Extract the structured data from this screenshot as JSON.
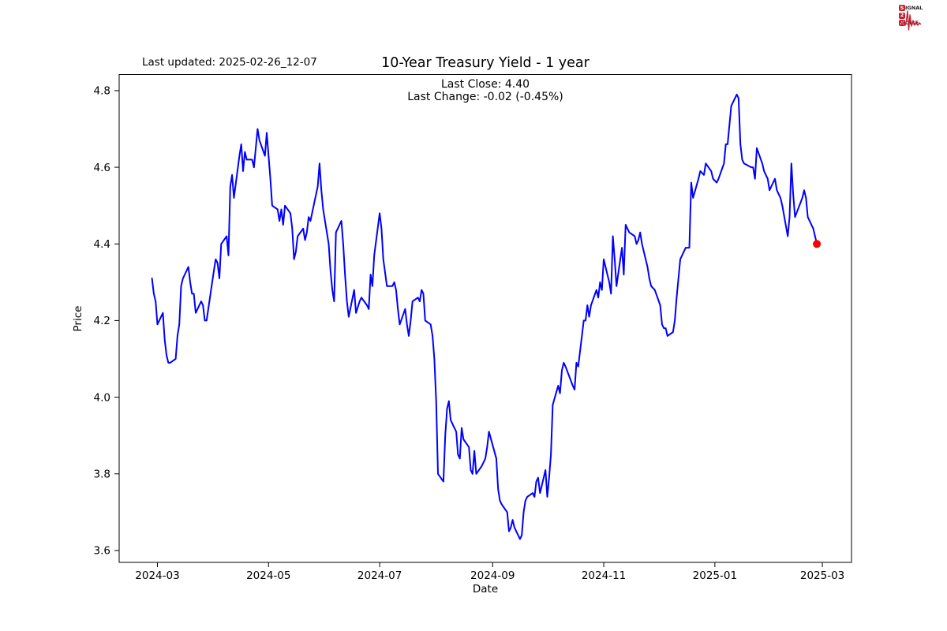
{
  "header": {
    "last_updated": "Last updated: 2025-02-26_12-07",
    "title": "10-Year Treasury Yield - 1 year",
    "subtitle_line1": "Last Close: 4.40",
    "subtitle_line2": "Last Change: -0.02 (-0.45%)"
  },
  "logo": {
    "word1_initial": "S",
    "word1_rest": "IGNAL",
    "word2_initial": "2",
    "word2_rest": "",
    "word3_initial": "N",
    "word3_rest": "OISE",
    "color": "#c32032"
  },
  "chart_data": {
    "type": "line",
    "title": "10-Year Treasury Yield - 1 year",
    "xlabel": "Date",
    "ylabel": "Price",
    "last_close": 4.4,
    "last_change": "-0.02 (-0.45%)",
    "ylim": [
      3.569,
      4.842
    ],
    "x_domain": [
      "2024-02-09",
      "2025-03-17"
    ],
    "yticks": [
      3.6,
      3.8,
      4.0,
      4.2,
      4.4,
      4.6,
      4.8
    ],
    "xticks": [
      "2024-03",
      "2024-05",
      "2024-07",
      "2024-09",
      "2024-11",
      "2025-01",
      "2025-03"
    ],
    "grid": false,
    "legend": "none",
    "line_color": "#0000ff",
    "last_point_color": "#ff0000",
    "axis_color": "#000000",
    "series": [
      {
        "name": "10-Year Treasury Yield",
        "points": [
          [
            "2024-02-27",
            4.31
          ],
          [
            "2024-02-28",
            4.27
          ],
          [
            "2024-02-29",
            4.25
          ],
          [
            "2024-03-01",
            4.19
          ],
          [
            "2024-03-04",
            4.22
          ],
          [
            "2024-03-05",
            4.15
          ],
          [
            "2024-03-06",
            4.11
          ],
          [
            "2024-03-07",
            4.09
          ],
          [
            "2024-03-08",
            4.09
          ],
          [
            "2024-03-11",
            4.1
          ],
          [
            "2024-03-12",
            4.16
          ],
          [
            "2024-03-13",
            4.19
          ],
          [
            "2024-03-14",
            4.29
          ],
          [
            "2024-03-15",
            4.31
          ],
          [
            "2024-03-18",
            4.34
          ],
          [
            "2024-03-19",
            4.3
          ],
          [
            "2024-03-20",
            4.27
          ],
          [
            "2024-03-21",
            4.27
          ],
          [
            "2024-03-22",
            4.22
          ],
          [
            "2024-03-25",
            4.25
          ],
          [
            "2024-03-26",
            4.24
          ],
          [
            "2024-03-27",
            4.2
          ],
          [
            "2024-03-28",
            4.2
          ],
          [
            "2024-04-01",
            4.33
          ],
          [
            "2024-04-02",
            4.36
          ],
          [
            "2024-04-03",
            4.35
          ],
          [
            "2024-04-04",
            4.31
          ],
          [
            "2024-04-05",
            4.4
          ],
          [
            "2024-04-08",
            4.42
          ],
          [
            "2024-04-09",
            4.37
          ],
          [
            "2024-04-10",
            4.55
          ],
          [
            "2024-04-11",
            4.58
          ],
          [
            "2024-04-12",
            4.52
          ],
          [
            "2024-04-15",
            4.63
          ],
          [
            "2024-04-16",
            4.66
          ],
          [
            "2024-04-17",
            4.59
          ],
          [
            "2024-04-18",
            4.64
          ],
          [
            "2024-04-19",
            4.62
          ],
          [
            "2024-04-22",
            4.62
          ],
          [
            "2024-04-23",
            4.6
          ],
          [
            "2024-04-24",
            4.65
          ],
          [
            "2024-04-25",
            4.7
          ],
          [
            "2024-04-26",
            4.67
          ],
          [
            "2024-04-29",
            4.63
          ],
          [
            "2024-04-30",
            4.69
          ],
          [
            "2024-05-01",
            4.63
          ],
          [
            "2024-05-02",
            4.57
          ],
          [
            "2024-05-03",
            4.5
          ],
          [
            "2024-05-06",
            4.49
          ],
          [
            "2024-05-07",
            4.46
          ],
          [
            "2024-05-08",
            4.49
          ],
          [
            "2024-05-09",
            4.45
          ],
          [
            "2024-05-10",
            4.5
          ],
          [
            "2024-05-13",
            4.48
          ],
          [
            "2024-05-14",
            4.44
          ],
          [
            "2024-05-15",
            4.36
          ],
          [
            "2024-05-16",
            4.38
          ],
          [
            "2024-05-17",
            4.42
          ],
          [
            "2024-05-20",
            4.44
          ],
          [
            "2024-05-21",
            4.41
          ],
          [
            "2024-05-22",
            4.43
          ],
          [
            "2024-05-23",
            4.47
          ],
          [
            "2024-05-24",
            4.46
          ],
          [
            "2024-05-28",
            4.55
          ],
          [
            "2024-05-29",
            4.61
          ],
          [
            "2024-05-30",
            4.54
          ],
          [
            "2024-05-31",
            4.49
          ],
          [
            "2024-06-03",
            4.4
          ],
          [
            "2024-06-04",
            4.33
          ],
          [
            "2024-06-05",
            4.28
          ],
          [
            "2024-06-06",
            4.25
          ],
          [
            "2024-06-07",
            4.43
          ],
          [
            "2024-06-10",
            4.46
          ],
          [
            "2024-06-11",
            4.4
          ],
          [
            "2024-06-12",
            4.32
          ],
          [
            "2024-06-13",
            4.25
          ],
          [
            "2024-06-14",
            4.21
          ],
          [
            "2024-06-17",
            4.28
          ],
          [
            "2024-06-18",
            4.22
          ],
          [
            "2024-06-20",
            4.25
          ],
          [
            "2024-06-21",
            4.26
          ],
          [
            "2024-06-24",
            4.24
          ],
          [
            "2024-06-25",
            4.23
          ],
          [
            "2024-06-26",
            4.32
          ],
          [
            "2024-06-27",
            4.29
          ],
          [
            "2024-06-28",
            4.37
          ],
          [
            "2024-07-01",
            4.48
          ],
          [
            "2024-07-02",
            4.44
          ],
          [
            "2024-07-03",
            4.36
          ],
          [
            "2024-07-05",
            4.29
          ],
          [
            "2024-07-08",
            4.29
          ],
          [
            "2024-07-09",
            4.3
          ],
          [
            "2024-07-10",
            4.28
          ],
          [
            "2024-07-11",
            4.23
          ],
          [
            "2024-07-12",
            4.19
          ],
          [
            "2024-07-15",
            4.23
          ],
          [
            "2024-07-16",
            4.19
          ],
          [
            "2024-07-17",
            4.16
          ],
          [
            "2024-07-18",
            4.2
          ],
          [
            "2024-07-19",
            4.25
          ],
          [
            "2024-07-22",
            4.26
          ],
          [
            "2024-07-23",
            4.25
          ],
          [
            "2024-07-24",
            4.28
          ],
          [
            "2024-07-25",
            4.27
          ],
          [
            "2024-07-26",
            4.2
          ],
          [
            "2024-07-29",
            4.19
          ],
          [
            "2024-07-30",
            4.16
          ],
          [
            "2024-07-31",
            4.1
          ],
          [
            "2024-08-01",
            3.99
          ],
          [
            "2024-08-02",
            3.8
          ],
          [
            "2024-08-05",
            3.78
          ],
          [
            "2024-08-06",
            3.9
          ],
          [
            "2024-08-07",
            3.97
          ],
          [
            "2024-08-08",
            3.99
          ],
          [
            "2024-08-09",
            3.94
          ],
          [
            "2024-08-12",
            3.91
          ],
          [
            "2024-08-13",
            3.85
          ],
          [
            "2024-08-14",
            3.84
          ],
          [
            "2024-08-15",
            3.92
          ],
          [
            "2024-08-16",
            3.89
          ],
          [
            "2024-08-19",
            3.87
          ],
          [
            "2024-08-20",
            3.81
          ],
          [
            "2024-08-21",
            3.8
          ],
          [
            "2024-08-22",
            3.86
          ],
          [
            "2024-08-23",
            3.8
          ],
          [
            "2024-08-26",
            3.82
          ],
          [
            "2024-08-27",
            3.83
          ],
          [
            "2024-08-28",
            3.84
          ],
          [
            "2024-08-29",
            3.87
          ],
          [
            "2024-08-30",
            3.91
          ],
          [
            "2024-09-03",
            3.84
          ],
          [
            "2024-09-04",
            3.76
          ],
          [
            "2024-09-05",
            3.73
          ],
          [
            "2024-09-06",
            3.72
          ],
          [
            "2024-09-09",
            3.7
          ],
          [
            "2024-09-10",
            3.65
          ],
          [
            "2024-09-11",
            3.66
          ],
          [
            "2024-09-12",
            3.68
          ],
          [
            "2024-09-13",
            3.66
          ],
          [
            "2024-09-16",
            3.63
          ],
          [
            "2024-09-17",
            3.64
          ],
          [
            "2024-09-18",
            3.7
          ],
          [
            "2024-09-19",
            3.73
          ],
          [
            "2024-09-20",
            3.74
          ],
          [
            "2024-09-23",
            3.75
          ],
          [
            "2024-09-24",
            3.74
          ],
          [
            "2024-09-25",
            3.78
          ],
          [
            "2024-09-26",
            3.79
          ],
          [
            "2024-09-27",
            3.75
          ],
          [
            "2024-09-30",
            3.81
          ],
          [
            "2024-10-01",
            3.74
          ],
          [
            "2024-10-02",
            3.79
          ],
          [
            "2024-10-03",
            3.85
          ],
          [
            "2024-10-04",
            3.98
          ],
          [
            "2024-10-07",
            4.03
          ],
          [
            "2024-10-08",
            4.01
          ],
          [
            "2024-10-09",
            4.07
          ],
          [
            "2024-10-10",
            4.09
          ],
          [
            "2024-10-11",
            4.08
          ],
          [
            "2024-10-15",
            4.03
          ],
          [
            "2024-10-16",
            4.02
          ],
          [
            "2024-10-17",
            4.09
          ],
          [
            "2024-10-18",
            4.08
          ],
          [
            "2024-10-21",
            4.2
          ],
          [
            "2024-10-22",
            4.2
          ],
          [
            "2024-10-23",
            4.24
          ],
          [
            "2024-10-24",
            4.21
          ],
          [
            "2024-10-25",
            4.24
          ],
          [
            "2024-10-28",
            4.28
          ],
          [
            "2024-10-29",
            4.26
          ],
          [
            "2024-10-30",
            4.3
          ],
          [
            "2024-10-31",
            4.28
          ],
          [
            "2024-11-01",
            4.36
          ],
          [
            "2024-11-04",
            4.3
          ],
          [
            "2024-11-05",
            4.27
          ],
          [
            "2024-11-06",
            4.42
          ],
          [
            "2024-11-07",
            4.36
          ],
          [
            "2024-11-08",
            4.29
          ],
          [
            "2024-11-11",
            4.39
          ],
          [
            "2024-11-12",
            4.32
          ],
          [
            "2024-11-13",
            4.45
          ],
          [
            "2024-11-14",
            4.44
          ],
          [
            "2024-11-15",
            4.43
          ],
          [
            "2024-11-18",
            4.42
          ],
          [
            "2024-11-19",
            4.4
          ],
          [
            "2024-11-20",
            4.41
          ],
          [
            "2024-11-21",
            4.43
          ],
          [
            "2024-11-22",
            4.4
          ],
          [
            "2024-11-25",
            4.34
          ],
          [
            "2024-11-26",
            4.31
          ],
          [
            "2024-11-27",
            4.29
          ],
          [
            "2024-11-29",
            4.28
          ],
          [
            "2024-12-02",
            4.24
          ],
          [
            "2024-12-03",
            4.19
          ],
          [
            "2024-12-04",
            4.18
          ],
          [
            "2024-12-05",
            4.18
          ],
          [
            "2024-12-06",
            4.16
          ],
          [
            "2024-12-09",
            4.17
          ],
          [
            "2024-12-10",
            4.2
          ],
          [
            "2024-12-11",
            4.26
          ],
          [
            "2024-12-12",
            4.31
          ],
          [
            "2024-12-13",
            4.36
          ],
          [
            "2024-12-16",
            4.39
          ],
          [
            "2024-12-17",
            4.39
          ],
          [
            "2024-12-18",
            4.39
          ],
          [
            "2024-12-19",
            4.56
          ],
          [
            "2024-12-20",
            4.52
          ],
          [
            "2024-12-23",
            4.57
          ],
          [
            "2024-12-24",
            4.59
          ],
          [
            "2024-12-26",
            4.58
          ],
          [
            "2024-12-27",
            4.61
          ],
          [
            "2024-12-30",
            4.59
          ],
          [
            "2024-12-31",
            4.57
          ],
          [
            "2025-01-02",
            4.56
          ],
          [
            "2025-01-03",
            4.57
          ],
          [
            "2025-01-06",
            4.61
          ],
          [
            "2025-01-07",
            4.66
          ],
          [
            "2025-01-08",
            4.66
          ],
          [
            "2025-01-10",
            4.76
          ],
          [
            "2025-01-13",
            4.79
          ],
          [
            "2025-01-14",
            4.78
          ],
          [
            "2025-01-15",
            4.66
          ],
          [
            "2025-01-16",
            4.62
          ],
          [
            "2025-01-17",
            4.61
          ],
          [
            "2025-01-21",
            4.6
          ],
          [
            "2025-01-22",
            4.6
          ],
          [
            "2025-01-23",
            4.57
          ],
          [
            "2025-01-24",
            4.65
          ],
          [
            "2025-01-27",
            4.61
          ],
          [
            "2025-01-28",
            4.59
          ],
          [
            "2025-01-29",
            4.58
          ],
          [
            "2025-01-30",
            4.57
          ],
          [
            "2025-01-31",
            4.54
          ],
          [
            "2025-02-03",
            4.57
          ],
          [
            "2025-02-04",
            4.54
          ],
          [
            "2025-02-05",
            4.53
          ],
          [
            "2025-02-06",
            4.52
          ],
          [
            "2025-02-07",
            4.5
          ],
          [
            "2025-02-10",
            4.42
          ],
          [
            "2025-02-11",
            4.47
          ],
          [
            "2025-02-12",
            4.61
          ],
          [
            "2025-02-13",
            4.53
          ],
          [
            "2025-02-14",
            4.47
          ],
          [
            "2025-02-18",
            4.52
          ],
          [
            "2025-02-19",
            4.54
          ],
          [
            "2025-02-20",
            4.52
          ],
          [
            "2025-02-21",
            4.47
          ],
          [
            "2025-02-24",
            4.44
          ],
          [
            "2025-02-25",
            4.42
          ],
          [
            "2025-02-26",
            4.4
          ]
        ]
      }
    ]
  }
}
